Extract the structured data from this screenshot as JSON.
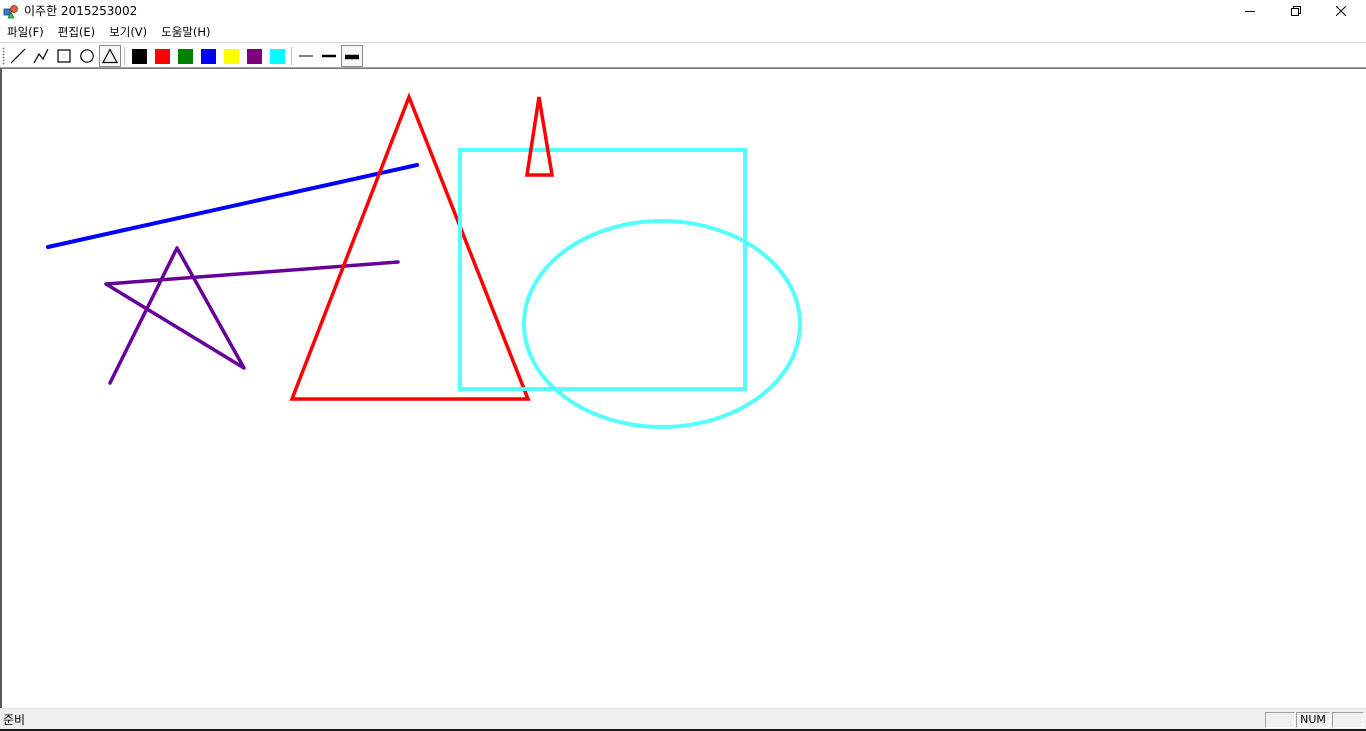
{
  "window": {
    "title": "이주한 2015253002"
  },
  "menu": {
    "items": [
      "파일(F)",
      "편집(E)",
      "보기(V)",
      "도움말(H)"
    ]
  },
  "toolbar": {
    "tools": [
      "line-icon",
      "polyline-icon",
      "rectangle-icon",
      "ellipse-icon",
      "triangle-icon"
    ],
    "selected_tool": "triangle-icon",
    "colors": [
      {
        "name": "black",
        "hex": "#000000"
      },
      {
        "name": "red",
        "hex": "#ff0000"
      },
      {
        "name": "green",
        "hex": "#008000"
      },
      {
        "name": "blue",
        "hex": "#0000ff"
      },
      {
        "name": "yellow",
        "hex": "#ffff00"
      },
      {
        "name": "purple",
        "hex": "#800080"
      },
      {
        "name": "cyan",
        "hex": "#00ffff"
      }
    ],
    "line_widths": [
      "thin-line-icon",
      "medium-line-icon",
      "thick-line-icon"
    ],
    "selected_width": "thick-line-icon"
  },
  "drawing": {
    "colors": {
      "blue": "#0000ff",
      "purple": "#660099",
      "red": "#ff0000",
      "cyan": "#55ffff"
    }
  },
  "status": {
    "text": "준비",
    "panes": [
      "",
      "NUM",
      ""
    ]
  }
}
